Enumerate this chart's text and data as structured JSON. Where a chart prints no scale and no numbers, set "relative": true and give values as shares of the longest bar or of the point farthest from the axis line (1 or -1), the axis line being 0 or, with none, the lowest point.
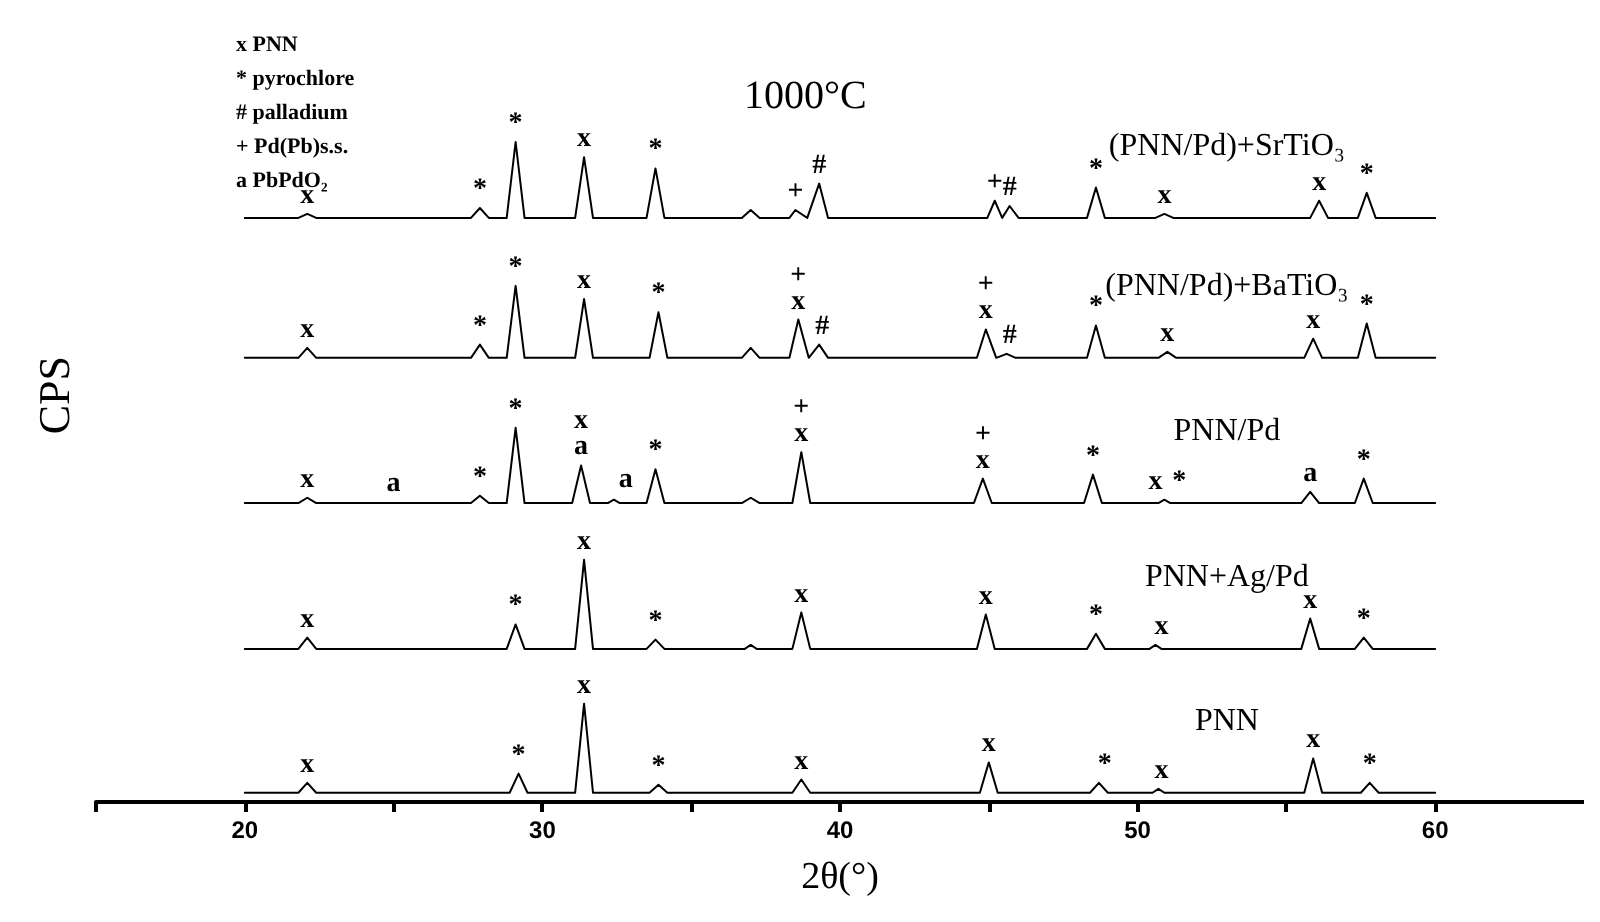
{
  "chart_data": {
    "type": "line",
    "relative": true,
    "xlabel": "2θ(°)",
    "ylabel": "CPS",
    "marker": "none",
    "line_style": "solid",
    "tick_labels": "x",
    "xlim": [
      15,
      65
    ],
    "xticks": [
      {
        "value": 15,
        "label": null
      },
      20,
      {
        "value": 25,
        "label": null
      },
      30,
      {
        "value": 35,
        "label": null
      },
      40,
      {
        "value": 45,
        "label": null
      },
      50,
      {
        "value": 55,
        "label": null
      },
      60
    ],
    "series": [
      {
        "name": "(PNN/Pd)+SrTiO₃",
        "color": "#000000",
        "x": [
          20,
          21.8,
          22.1,
          22.4,
          27.6,
          27.9,
          28.2,
          28.8,
          29.1,
          29.4,
          31.1,
          31.4,
          31.7,
          33.5,
          33.8,
          34.1,
          36.7,
          37.0,
          37.3,
          38.3,
          38.5,
          38.9,
          39.3,
          39.6,
          44.95,
          45.2,
          45.45,
          45.7,
          46.0,
          48.3,
          48.6,
          48.9,
          50.6,
          50.9,
          51.2,
          55.8,
          56.1,
          56.4,
          57.4,
          57.7,
          58.0,
          60
        ],
        "values": [
          0.885,
          0.885,
          0.891,
          0.885,
          0.885,
          0.9,
          0.885,
          0.885,
          1.0,
          0.885,
          0.885,
          0.977,
          0.885,
          0.885,
          0.96,
          0.885,
          0.885,
          0.897,
          0.885,
          0.885,
          0.897,
          0.885,
          0.937,
          0.885,
          0.885,
          0.911,
          0.885,
          0.903,
          0.885,
          0.885,
          0.931,
          0.885,
          0.885,
          0.891,
          0.885,
          0.885,
          0.911,
          0.885,
          0.885,
          0.923,
          0.885,
          0.885
        ]
      },
      {
        "name": "(PNN/Pd)+BaTiO₃",
        "color": "#000000",
        "x": [
          20,
          21.8,
          22.1,
          22.4,
          27.6,
          27.9,
          28.2,
          28.8,
          29.1,
          29.4,
          31.1,
          31.4,
          31.7,
          33.6,
          33.9,
          34.2,
          36.7,
          37.0,
          37.3,
          38.3,
          38.6,
          38.95,
          39.3,
          39.6,
          44.6,
          44.9,
          45.25,
          45.6,
          45.9,
          48.3,
          48.6,
          48.9,
          50.7,
          51.0,
          51.3,
          55.6,
          55.9,
          56.2,
          57.4,
          57.7,
          58.0,
          60
        ],
        "values": [
          0.673,
          0.673,
          0.688,
          0.673,
          0.673,
          0.693,
          0.673,
          0.673,
          0.782,
          0.673,
          0.673,
          0.762,
          0.673,
          0.673,
          0.742,
          0.673,
          0.673,
          0.688,
          0.673,
          0.673,
          0.731,
          0.673,
          0.693,
          0.673,
          0.673,
          0.716,
          0.673,
          0.679,
          0.673,
          0.673,
          0.722,
          0.673,
          0.673,
          0.682,
          0.673,
          0.673,
          0.702,
          0.673,
          0.673,
          0.725,
          0.673,
          0.673
        ]
      },
      {
        "name": "PNN/Pd",
        "color": "#000000",
        "x": [
          20,
          21.8,
          22.1,
          22.4,
          27.6,
          27.9,
          28.2,
          28.8,
          29.1,
          29.4,
          31.0,
          31.3,
          31.6,
          32.2,
          32.4,
          32.6,
          33.5,
          33.8,
          34.1,
          36.7,
          37.0,
          37.3,
          38.4,
          38.7,
          39.0,
          44.5,
          44.8,
          45.1,
          48.2,
          48.5,
          48.8,
          50.7,
          50.9,
          51.1,
          55.5,
          55.8,
          56.1,
          57.3,
          57.6,
          57.9,
          60
        ],
        "values": [
          0.453,
          0.453,
          0.461,
          0.453,
          0.453,
          0.464,
          0.453,
          0.453,
          0.567,
          0.453,
          0.453,
          0.51,
          0.453,
          0.453,
          0.458,
          0.453,
          0.453,
          0.504,
          0.453,
          0.453,
          0.461,
          0.453,
          0.453,
          0.53,
          0.453,
          0.453,
          0.49,
          0.453,
          0.453,
          0.496,
          0.453,
          0.453,
          0.458,
          0.453,
          0.453,
          0.47,
          0.453,
          0.453,
          0.49,
          0.453,
          0.453
        ]
      },
      {
        "name": "PNN+Ag/Pd",
        "color": "#000000",
        "x": [
          20,
          21.8,
          22.1,
          22.4,
          28.8,
          29.1,
          29.4,
          31.1,
          31.4,
          31.7,
          33.5,
          33.8,
          34.1,
          36.8,
          37.0,
          37.2,
          38.4,
          38.7,
          39.0,
          44.6,
          44.9,
          45.2,
          48.3,
          48.6,
          48.9,
          50.4,
          50.6,
          50.8,
          55.5,
          55.8,
          56.1,
          57.3,
          57.6,
          57.9,
          60
        ],
        "values": [
          0.232,
          0.232,
          0.249,
          0.232,
          0.232,
          0.269,
          0.232,
          0.232,
          0.367,
          0.232,
          0.232,
          0.246,
          0.232,
          0.232,
          0.238,
          0.232,
          0.232,
          0.287,
          0.232,
          0.232,
          0.284,
          0.232,
          0.232,
          0.255,
          0.232,
          0.232,
          0.238,
          0.232,
          0.232,
          0.278,
          0.232,
          0.232,
          0.249,
          0.232,
          0.232
        ]
      },
      {
        "name": "PNN",
        "color": "#000000",
        "x": [
          20,
          21.8,
          22.1,
          22.4,
          28.9,
          29.2,
          29.5,
          31.1,
          31.4,
          31.7,
          33.6,
          33.9,
          34.2,
          38.4,
          38.7,
          39.0,
          44.7,
          45.0,
          45.3,
          48.4,
          48.7,
          49.0,
          50.5,
          50.7,
          50.9,
          55.6,
          55.9,
          56.2,
          57.5,
          57.8,
          58.1,
          60
        ],
        "values": [
          0.014,
          0.014,
          0.029,
          0.014,
          0.014,
          0.043,
          0.014,
          0.014,
          0.149,
          0.014,
          0.014,
          0.026,
          0.014,
          0.014,
          0.034,
          0.014,
          0.014,
          0.06,
          0.014,
          0.014,
          0.029,
          0.014,
          0.014,
          0.02,
          0.014,
          0.014,
          0.066,
          0.014,
          0.014,
          0.029,
          0.014,
          0.014
        ]
      }
    ],
    "annotations": [
      "x PNN",
      "* pyrochlore",
      "# palladium",
      "+ Pd(Pb)s.s.",
      "a PbPdO₂",
      "1000°C",
      {
        "text": "x",
        "x": 22.1,
        "y": 0.891
      },
      {
        "text": "*",
        "x": 27.9,
        "y": 0.9
      },
      {
        "text": "*",
        "x": 29.1,
        "y": 1.0
      },
      {
        "text": "x",
        "x": 31.4,
        "y": 0.977
      },
      {
        "text": "*",
        "x": 33.8,
        "y": 0.96
      },
      {
        "text": "+",
        "x": 38.5,
        "y": 0.897
      },
      {
        "text": "#",
        "x": 39.3,
        "y": 0.937
      },
      {
        "text": "+",
        "x": 45.2,
        "y": 0.911
      },
      {
        "text": "#",
        "x": 45.7,
        "y": 0.903
      },
      {
        "text": "*",
        "x": 48.6,
        "y": 0.931
      },
      {
        "text": "x",
        "x": 50.9,
        "y": 0.891
      },
      {
        "text": "x",
        "x": 56.1,
        "y": 0.911
      },
      {
        "text": "*",
        "x": 57.7,
        "y": 0.923
      },
      {
        "text": "x",
        "x": 22.1,
        "y": 0.688
      },
      {
        "text": "*",
        "x": 27.9,
        "y": 0.693
      },
      {
        "text": "*",
        "x": 29.1,
        "y": 0.782
      },
      {
        "text": "x",
        "x": 31.4,
        "y": 0.762
      },
      {
        "text": "*",
        "x": 33.9,
        "y": 0.742
      },
      {
        "text": "x",
        "x": 38.6,
        "y": 0.731
      },
      {
        "text": "+",
        "x": 38.6,
        "y": 0.731
      },
      {
        "text": "#",
        "x": 39.4,
        "y": 0.693
      },
      {
        "text": "x",
        "x": 44.9,
        "y": 0.716
      },
      {
        "text": "+",
        "x": 44.9,
        "y": 0.716
      },
      {
        "text": "#",
        "x": 45.7,
        "y": 0.679
      },
      {
        "text": "*",
        "x": 48.6,
        "y": 0.722
      },
      {
        "text": "x",
        "x": 51.0,
        "y": 0.682
      },
      {
        "text": "x",
        "x": 55.9,
        "y": 0.702
      },
      {
        "text": "*",
        "x": 57.7,
        "y": 0.725
      },
      {
        "text": "x",
        "x": 22.1,
        "y": 0.461
      },
      {
        "text": "a",
        "x": 25.0,
        "y": 0.455
      },
      {
        "text": "*",
        "x": 27.9,
        "y": 0.464
      },
      {
        "text": "*",
        "x": 29.1,
        "y": 0.567
      },
      {
        "text": "a",
        "x": 31.3,
        "y": 0.51
      },
      {
        "text": "x",
        "x": 31.3,
        "y": 0.51
      },
      {
        "text": "a",
        "x": 32.8,
        "y": 0.46
      },
      {
        "text": "*",
        "x": 33.8,
        "y": 0.504
      },
      {
        "text": "x",
        "x": 38.7,
        "y": 0.53
      },
      {
        "text": "+",
        "x": 38.7,
        "y": 0.53
      },
      {
        "text": "x",
        "x": 44.8,
        "y": 0.49
      },
      {
        "text": "+",
        "x": 44.8,
        "y": 0.49
      },
      {
        "text": "*",
        "x": 48.5,
        "y": 0.496
      },
      {
        "text": "x",
        "x": 50.6,
        "y": 0.458
      },
      {
        "text": "*",
        "x": 51.4,
        "y": 0.458
      },
      {
        "text": "a",
        "x": 55.8,
        "y": 0.47
      },
      {
        "text": "*",
        "x": 57.6,
        "y": 0.49
      },
      {
        "text": "x",
        "x": 22.1,
        "y": 0.249
      },
      {
        "text": "*",
        "x": 29.1,
        "y": 0.269
      },
      {
        "text": "x",
        "x": 31.4,
        "y": 0.367
      },
      {
        "text": "*",
        "x": 33.8,
        "y": 0.246
      },
      {
        "text": "x",
        "x": 38.7,
        "y": 0.287
      },
      {
        "text": "x",
        "x": 44.9,
        "y": 0.284
      },
      {
        "text": "*",
        "x": 48.6,
        "y": 0.255
      },
      {
        "text": "x",
        "x": 50.8,
        "y": 0.238
      },
      {
        "text": "x",
        "x": 55.8,
        "y": 0.278
      },
      {
        "text": "*",
        "x": 57.6,
        "y": 0.249
      },
      {
        "text": "x",
        "x": 22.1,
        "y": 0.029
      },
      {
        "text": "*",
        "x": 29.2,
        "y": 0.043
      },
      {
        "text": "x",
        "x": 31.4,
        "y": 0.149
      },
      {
        "text": "*",
        "x": 33.9,
        "y": 0.026
      },
      {
        "text": "x",
        "x": 38.7,
        "y": 0.034
      },
      {
        "text": "x",
        "x": 45.0,
        "y": 0.06
      },
      {
        "text": "*",
        "x": 48.9,
        "y": 0.029
      },
      {
        "text": "x",
        "x": 50.8,
        "y": 0.02
      },
      {
        "text": "x",
        "x": 55.9,
        "y": 0.066
      },
      {
        "text": "*",
        "x": 57.8,
        "y": 0.029
      }
    ]
  }
}
